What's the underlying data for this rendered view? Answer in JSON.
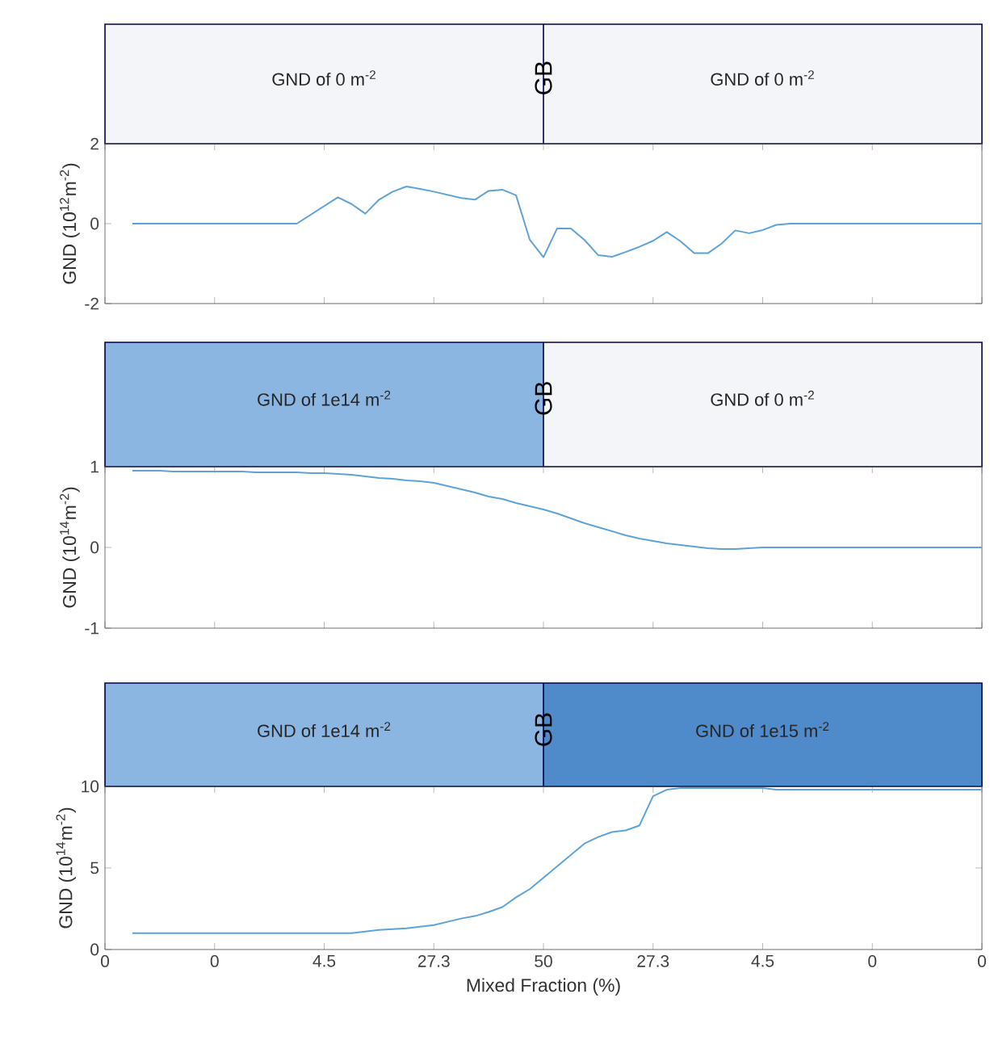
{
  "chart_data": [
    {
      "type": "other",
      "annotations": [
        "GND of 0 m$^{-2}$",
        "GB",
        "GND of 0 m$^{-2}$"
      ],
      "colors": [
        "#f3f5f8",
        "#f3f5f8"
      ]
    },
    {
      "type": "line",
      "ylabel": "GND (10$^{12}$m$^{-2}$)",
      "color": "#5ea3d8",
      "ylim": [
        -2,
        2
      ],
      "yticks": [
        -2,
        0,
        2
      ],
      "tick_labels": "y",
      "categories": [
        "0",
        null,
        null,
        null,
        null,
        null,
        null,
        null,
        "0",
        null,
        null,
        null,
        null,
        null,
        null,
        null,
        "4.5",
        null,
        null,
        null,
        null,
        null,
        null,
        null,
        "27.3",
        null,
        null,
        null,
        null,
        null,
        null,
        null,
        "50",
        null,
        null,
        null,
        null,
        null,
        null,
        null,
        "27.3",
        null,
        null,
        null,
        null,
        null,
        null,
        null,
        "4.5",
        null,
        null,
        null,
        null,
        null,
        null,
        null,
        "0",
        null,
        null,
        null,
        null,
        null,
        null,
        null,
        "0"
      ],
      "values": [
        null,
        null,
        0,
        0,
        0,
        0,
        0,
        0,
        0,
        0,
        0,
        0,
        0,
        0,
        0,
        0.22,
        0.44,
        0.66,
        0.49,
        0.25,
        0.6,
        0.8,
        0.93,
        0.87,
        0.8,
        0.72,
        0.64,
        0.6,
        0.82,
        0.85,
        0.71,
        -0.4,
        -0.84,
        -0.12,
        -0.12,
        -0.41,
        -0.79,
        -0.83,
        -0.71,
        -0.58,
        -0.43,
        -0.21,
        -0.44,
        -0.74,
        -0.74,
        -0.5,
        -0.17,
        -0.24,
        -0.16,
        -0.03,
        0,
        0,
        0,
        0,
        0,
        0,
        0,
        0,
        0,
        0,
        0,
        0,
        0,
        0,
        0
      ]
    },
    {
      "type": "other",
      "annotations": [
        "GND of 1e14 m$^{-2}$",
        "GB",
        "GND of 0 m$^{-2}$"
      ],
      "colors": [
        "#8ab6e1",
        "#f3f5f8"
      ]
    },
    {
      "type": "line",
      "ylabel": "GND (10$^{14}$m$^{-2}$)",
      "color": "#5ea3d8",
      "ylim": [
        -1,
        1
      ],
      "yticks": [
        -1,
        0,
        1
      ],
      "tick_labels": "y",
      "categories": [
        "0",
        null,
        null,
        null,
        null,
        null,
        null,
        null,
        "0",
        null,
        null,
        null,
        null,
        null,
        null,
        null,
        "4.5",
        null,
        null,
        null,
        null,
        null,
        null,
        null,
        "27.3",
        null,
        null,
        null,
        null,
        null,
        null,
        null,
        "50",
        null,
        null,
        null,
        null,
        null,
        null,
        null,
        "27.3",
        null,
        null,
        null,
        null,
        null,
        null,
        null,
        "4.5",
        null,
        null,
        null,
        null,
        null,
        null,
        null,
        "0",
        null,
        null,
        null,
        null,
        null,
        null,
        null,
        "0"
      ],
      "values": [
        null,
        null,
        0.95,
        0.95,
        0.95,
        0.94,
        0.94,
        0.94,
        0.94,
        0.94,
        0.94,
        0.93,
        0.93,
        0.93,
        0.93,
        0.92,
        0.92,
        0.91,
        0.9,
        0.88,
        0.86,
        0.85,
        0.83,
        0.82,
        0.8,
        0.76,
        0.72,
        0.68,
        0.63,
        0.6,
        0.55,
        0.51,
        0.47,
        0.42,
        0.36,
        0.3,
        0.25,
        0.2,
        0.15,
        0.11,
        0.08,
        0.05,
        0.03,
        0.01,
        -0.01,
        -0.02,
        -0.02,
        -0.01,
        0,
        0,
        0,
        0,
        0,
        0,
        0,
        0,
        0,
        0,
        0,
        0,
        0,
        0,
        0,
        0,
        0
      ]
    },
    {
      "type": "other",
      "annotations": [
        "GND of 1e14 m$^{-2}$",
        "GB",
        "GND of 1e15 m$^{-2}$"
      ],
      "colors": [
        "#8ab6e1",
        "#4f8acb"
      ]
    },
    {
      "type": "line",
      "ylabel": "GND (10$^{14}$m$^{-2}$)",
      "xlabel": "Mixed Fraction (%)",
      "color": "#5ea3d8",
      "ylim": [
        0,
        10
      ],
      "yticks": [
        0,
        5,
        10
      ],
      "categories": [
        "0",
        null,
        null,
        null,
        null,
        null,
        null,
        null,
        "0",
        null,
        null,
        null,
        null,
        null,
        null,
        null,
        "4.5",
        null,
        null,
        null,
        null,
        null,
        null,
        null,
        "27.3",
        null,
        null,
        null,
        null,
        null,
        null,
        null,
        "50",
        null,
        null,
        null,
        null,
        null,
        null,
        null,
        "27.3",
        null,
        null,
        null,
        null,
        null,
        null,
        null,
        "4.5",
        null,
        null,
        null,
        null,
        null,
        null,
        null,
        "0",
        null,
        null,
        null,
        null,
        null,
        null,
        null,
        "0"
      ],
      "values": [
        null,
        null,
        1.0,
        1.0,
        1.0,
        1.0,
        1.0,
        1.0,
        1.0,
        1.0,
        1.0,
        1.0,
        1.0,
        1.0,
        1.0,
        1.0,
        1.0,
        1.0,
        1.0,
        1.1,
        1.2,
        1.25,
        1.3,
        1.4,
        1.5,
        1.7,
        1.9,
        2.05,
        2.3,
        2.6,
        3.2,
        3.7,
        4.4,
        5.1,
        5.8,
        6.5,
        6.9,
        7.2,
        7.3,
        7.6,
        9.4,
        9.8,
        9.9,
        9.9,
        9.9,
        9.9,
        9.9,
        9.9,
        9.9,
        9.8,
        9.8,
        9.8,
        9.8,
        9.8,
        9.8,
        9.8,
        9.8,
        9.8,
        9.8,
        9.8,
        9.8,
        9.8,
        9.8,
        9.8,
        9.8
      ]
    }
  ]
}
